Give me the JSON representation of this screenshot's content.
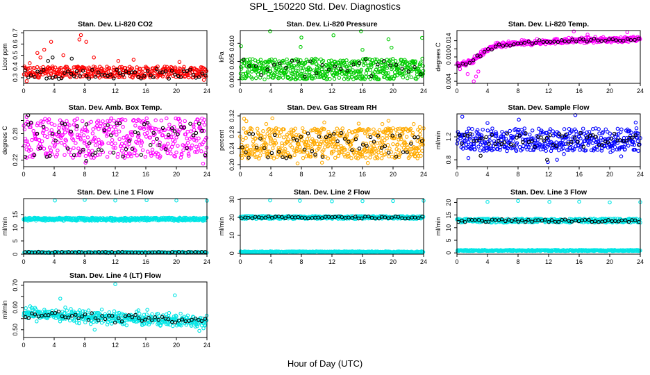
{
  "figure": {
    "title": "SPL_150220  Std. Dev. Diagnostics",
    "xlabel": "Hour of Day (UTC)"
  },
  "chart_data": [
    {
      "type": "scatter",
      "title": "Stan. Dev. Li-820 CO2",
      "ylabel": "Licor ppm",
      "xlim": [
        0,
        24
      ],
      "ylim": [
        0.25,
        0.72
      ],
      "xticks": [
        0,
        4,
        8,
        12,
        16,
        20,
        24
      ],
      "yticks": [
        0.3,
        0.4,
        0.5,
        0.6,
        0.7
      ],
      "series": [
        {
          "color": "#ff0000",
          "band": [
            0.3,
            0.4
          ],
          "n": 380,
          "outliers": [
            [
              0.8,
              0.43
            ],
            [
              1.8,
              0.52
            ],
            [
              2.2,
              0.48
            ],
            [
              2.7,
              0.55
            ],
            [
              3.6,
              0.62
            ],
            [
              5.2,
              0.5
            ],
            [
              7.3,
              0.64
            ],
            [
              7.5,
              0.68
            ],
            [
              8.2,
              0.62
            ],
            [
              9.2,
              0.48
            ],
            [
              12.4,
              0.45
            ],
            [
              14.4,
              0.46
            ],
            [
              20.4,
              0.44
            ],
            [
              23.6,
              0.28
            ],
            [
              0.4,
              0.27
            ]
          ]
        },
        {
          "color": "#000000",
          "band": [
            0.29,
            0.38
          ],
          "n": 60,
          "outliers": [
            [
              3.8,
              0.48
            ],
            [
              6.3,
              0.47
            ],
            [
              3.2,
              0.45
            ]
          ]
        }
      ]
    },
    {
      "type": "scatter",
      "title": "Stan. Dev. Li-820 Pressure",
      "ylabel": "kPa",
      "xlim": [
        0,
        24
      ],
      "ylim": [
        -0.001,
        0.0135
      ],
      "xticks": [
        0,
        4,
        8,
        12,
        16,
        20,
        24
      ],
      "yticks": [
        0,
        0.005,
        0.01
      ],
      "ytick_labels": [
        "0.000",
        "0.005",
        "0.010"
      ],
      "series": [
        {
          "color": "#00cc00",
          "band": [
            0.0001,
            0.0058
          ],
          "n": 520,
          "outliers": [
            [
              0.1,
              0.0092
            ],
            [
              3.9,
              0.0133
            ],
            [
              8.0,
              0.0116
            ],
            [
              7.9,
              0.009
            ],
            [
              12.2,
              0.0122
            ],
            [
              15.8,
              0.0133
            ],
            [
              19.4,
              0.0111
            ],
            [
              19.8,
              0.0088
            ],
            [
              23.8,
              0.0115
            ],
            [
              16.0,
              0.0082
            ]
          ]
        },
        {
          "color": "#000000",
          "band": [
            0.0003,
            0.0058
          ],
          "n": 30,
          "outliers": []
        }
      ]
    },
    {
      "type": "scatter",
      "title": "Stan. Dev. Li-820 Temp.",
      "ylabel": "degrees C",
      "xlim": [
        0,
        24
      ],
      "ylim": [
        0.0035,
        0.0165
      ],
      "xticks": [
        0,
        4,
        8,
        12,
        16,
        20,
        24
      ],
      "yticks": [
        0.004,
        0.006,
        0.008,
        0.01,
        0.012,
        0.014
      ],
      "ytick_labels": [
        "0.004",
        "",
        "",
        "0.010",
        "",
        "0.014"
      ],
      "trend": [
        [
          0,
          0.0082
        ],
        [
          1,
          0.0083
        ],
        [
          2,
          0.009
        ],
        [
          3,
          0.0105
        ],
        [
          4,
          0.0118
        ],
        [
          5,
          0.0127
        ],
        [
          8,
          0.0133
        ],
        [
          12,
          0.0138
        ],
        [
          16,
          0.0141
        ],
        [
          20,
          0.0142
        ],
        [
          24,
          0.0144
        ]
      ],
      "series": [
        {
          "color": "#ff00ff",
          "spread": 0.0011,
          "n": 420,
          "outliers": [
            [
              2.2,
              0.004
            ],
            [
              2.5,
              0.0052
            ],
            [
              1.4,
              0.0058
            ],
            [
              2.8,
              0.0064
            ],
            [
              0.4,
              0.007
            ],
            [
              15.3,
              0.0163
            ],
            [
              22.3,
              0.0161
            ],
            [
              17.1,
              0.0155
            ]
          ]
        },
        {
          "color": "#000000",
          "spread": 0.0007,
          "n": 50,
          "outliers": []
        }
      ]
    },
    {
      "type": "scatter",
      "title": "Stan. Dev. Amb. Box Temp.",
      "ylabel": "degrees C",
      "xlim": [
        0,
        24
      ],
      "ylim": [
        0.205,
        0.325
      ],
      "xticks": [
        0,
        4,
        8,
        12,
        16,
        20,
        24
      ],
      "yticks": [
        0.22,
        0.25,
        0.28,
        0.31
      ],
      "ytick_labels": [
        "0.22",
        "",
        "0.28",
        ""
      ],
      "series": [
        {
          "color": "#ff00ff",
          "band": [
            0.225,
            0.315
          ],
          "n": 420,
          "outliers": [
            [
              0.4,
              0.318
            ],
            [
              23.5,
              0.212
            ],
            [
              8.1,
              0.214
            ]
          ]
        },
        {
          "color": "#000000",
          "band": [
            0.225,
            0.31
          ],
          "n": 60,
          "outliers": [
            [
              0.6,
              0.322
            ],
            [
              8.2,
              0.218
            ]
          ]
        }
      ]
    },
    {
      "type": "scatter",
      "title": "Stan. Dev. Gas Stream RH",
      "ylabel": "percent",
      "xlim": [
        0,
        24
      ],
      "ylim": [
        0.195,
        0.325
      ],
      "xticks": [
        0,
        4,
        8,
        12,
        16,
        20,
        24
      ],
      "yticks": [
        0.2,
        0.24,
        0.28,
        0.32
      ],
      "ytick_labels": [
        "0.20",
        "0.24",
        "0.28",
        "0.32"
      ],
      "series": [
        {
          "color": "#ffaa00",
          "band": [
            0.215,
            0.29
          ],
          "n": 520,
          "outliers": [
            [
              0.5,
              0.313
            ],
            [
              0.8,
              0.307
            ],
            [
              3.4,
              0.3
            ],
            [
              4.2,
              0.314
            ],
            [
              11.0,
              0.304
            ],
            [
              15.5,
              0.301
            ],
            [
              18.6,
              0.3
            ],
            [
              19.4,
              0.308
            ],
            [
              22.7,
              0.3
            ],
            [
              23.5,
              0.293
            ],
            [
              10.7,
              0.205
            ],
            [
              7.5,
              0.203
            ],
            [
              16.7,
              0.204
            ]
          ]
        },
        {
          "color": "#000000",
          "band": [
            0.215,
            0.28
          ],
          "n": 50,
          "outliers": [
            [
              1.1,
              0.217
            ]
          ]
        }
      ]
    },
    {
      "type": "scatter",
      "title": "Stan. Dev. Sample Flow",
      "ylabel": "ml/min",
      "xlim": [
        0,
        24
      ],
      "ylim": [
        0.68,
        1.6
      ],
      "xticks": [
        0,
        4,
        8,
        12,
        16,
        20,
        24
      ],
      "yticks": [
        0.8,
        1.2
      ],
      "ytick_labels": [
        "0.8",
        "1.2"
      ],
      "series": [
        {
          "color": "#0000ff",
          "band": [
            0.95,
            1.35
          ],
          "n": 420,
          "outliers": [
            [
              0.7,
              1.55
            ],
            [
              1.5,
              0.83
            ],
            [
              4.0,
              1.44
            ],
            [
              8.1,
              1.5
            ],
            [
              11.9,
              0.76
            ],
            [
              13.1,
              0.8
            ],
            [
              14.0,
              0.9
            ],
            [
              15.5,
              1.58
            ],
            [
              20.1,
              0.93
            ],
            [
              23.4,
              1.45
            ],
            [
              21.5,
              0.86
            ]
          ]
        },
        {
          "color": "#000000",
          "band": [
            1.02,
            1.28
          ],
          "n": 60,
          "outliers": [
            [
              3.1,
              0.87
            ],
            [
              11.8,
              0.8
            ]
          ]
        }
      ]
    },
    {
      "type": "scatter",
      "title": "Stan. Dev. Line 1 Flow",
      "ylabel": "ml/min",
      "xlim": [
        0,
        24
      ],
      "ylim": [
        0,
        21
      ],
      "xticks": [
        0,
        4,
        8,
        12,
        16,
        20,
        24
      ],
      "yticks": [
        0,
        5,
        10,
        15
      ],
      "series": [
        {
          "color": "#00e5e5",
          "band": [
            12.6,
            13.8
          ],
          "n": 420,
          "outliers": [
            [
              4.1,
              20.3
            ],
            [
              8.0,
              20.5
            ],
            [
              12.0,
              20.3
            ],
            [
              16.1,
              20.4
            ],
            [
              20.0,
              20.3
            ],
            [
              24.0,
              20.2
            ]
          ]
        },
        {
          "color": "#00e5e5",
          "band": [
            0.5,
            0.9
          ],
          "n": 200,
          "outliers": []
        },
        {
          "color": "#000000",
          "band": [
            0.5,
            0.9
          ],
          "n": 55,
          "outliers": []
        }
      ]
    },
    {
      "type": "scatter",
      "title": "Stan. Dev. Line 2 Flow",
      "ylabel": "ml/min",
      "xlim": [
        0,
        24
      ],
      "ylim": [
        -0.5,
        30.5
      ],
      "xticks": [
        0,
        4,
        8,
        12,
        16,
        20,
        24
      ],
      "yticks": [
        0,
        10,
        20,
        30
      ],
      "series": [
        {
          "color": "#00e5e5",
          "band": [
            19.2,
            20.8
          ],
          "n": 380,
          "outliers": [
            [
              3.9,
              29.5
            ],
            [
              7.8,
              29.3
            ],
            [
              12.0,
              29.0
            ],
            [
              16.0,
              29.1
            ],
            [
              20.0,
              29.2
            ],
            [
              24.0,
              29.3
            ]
          ]
        },
        {
          "color": "#00e5e5",
          "band": [
            0.5,
            1.1
          ],
          "n": 300,
          "outliers": []
        },
        {
          "color": "#000000",
          "band": [
            19.4,
            20.6
          ],
          "n": 55,
          "outliers": []
        }
      ]
    },
    {
      "type": "scatter",
      "title": "Stan. Dev. Line 3 Flow",
      "ylabel": "ml/min",
      "xlim": [
        0,
        24
      ],
      "ylim": [
        -0.5,
        21.5
      ],
      "xticks": [
        0,
        4,
        8,
        12,
        16,
        20,
        24
      ],
      "yticks": [
        0,
        5,
        10,
        15,
        20
      ],
      "series": [
        {
          "color": "#00e5e5",
          "band": [
            12.0,
            13.6
          ],
          "n": 380,
          "outliers": [
            [
              4.0,
              20.2
            ],
            [
              8.0,
              20.6
            ],
            [
              12.1,
              20.2
            ],
            [
              16.0,
              20.3
            ],
            [
              20.0,
              20.0
            ],
            [
              24.0,
              20.1
            ]
          ]
        },
        {
          "color": "#00e5e5",
          "band": [
            0.7,
            1.2
          ],
          "n": 300,
          "outliers": []
        },
        {
          "color": "#000000",
          "band": [
            12.2,
            13.3
          ],
          "n": 55,
          "outliers": []
        }
      ]
    },
    {
      "type": "scatter",
      "title": "Stan. Dev. Line 4 (LT) Flow",
      "ylabel": "ml/min",
      "xlim": [
        0,
        24
      ],
      "ylim": [
        0.465,
        0.715
      ],
      "xticks": [
        0,
        4,
        8,
        12,
        16,
        20,
        24
      ],
      "yticks": [
        0.5,
        0.55,
        0.6,
        0.65,
        0.7
      ],
      "ytick_labels": [
        "0.50",
        "",
        "0.60",
        "",
        "0.70"
      ],
      "trend": [
        [
          0,
          0.575
        ],
        [
          2,
          0.57
        ],
        [
          5,
          0.565
        ],
        [
          10,
          0.555
        ],
        [
          15,
          0.548
        ],
        [
          20,
          0.542
        ],
        [
          24,
          0.54
        ]
      ],
      "series": [
        {
          "color": "#00e5e5",
          "spread": 0.05,
          "n": 420,
          "outliers": [
            [
              12.0,
              0.705
            ],
            [
              19.8,
              0.655
            ],
            [
              4.8,
              0.64
            ],
            [
              23.0,
              0.495
            ],
            [
              9.3,
              0.5
            ]
          ]
        },
        {
          "color": "#000000",
          "spread": 0.03,
          "n": 55,
          "outliers": []
        }
      ]
    }
  ]
}
